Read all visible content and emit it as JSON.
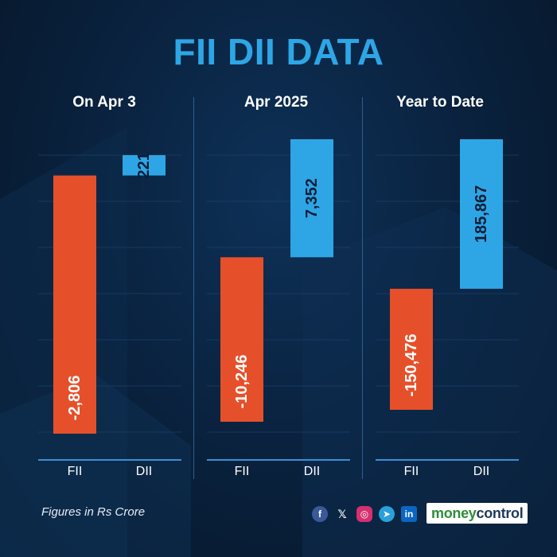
{
  "title": "FII DII DATA",
  "footnote": "Figures in Rs Crore",
  "colors": {
    "fii": "#e5502a",
    "dii": "#2ea6e6",
    "title": "#2ea6e6"
  },
  "social_icons": [
    "facebook-icon",
    "x-icon",
    "instagram-icon",
    "telegram-icon",
    "linkedin-icon"
  ],
  "brand": {
    "part1": "money",
    "part2": "control"
  },
  "chart_data": [
    {
      "type": "bar",
      "title": "On Apr 3",
      "categories": [
        "FII",
        "DII"
      ],
      "values": [
        -2806,
        221
      ],
      "labels": [
        "-2,806",
        "221"
      ]
    },
    {
      "type": "bar",
      "title": "Apr 2025",
      "categories": [
        "FII",
        "DII"
      ],
      "values": [
        -10246,
        7352
      ],
      "labels": [
        "-10,246",
        "7,352"
      ]
    },
    {
      "type": "bar",
      "title": "Year to Date",
      "categories": [
        "FII",
        "DII"
      ],
      "values": [
        -150476,
        185867
      ],
      "labels": [
        "-150,476",
        "185,867"
      ]
    }
  ]
}
